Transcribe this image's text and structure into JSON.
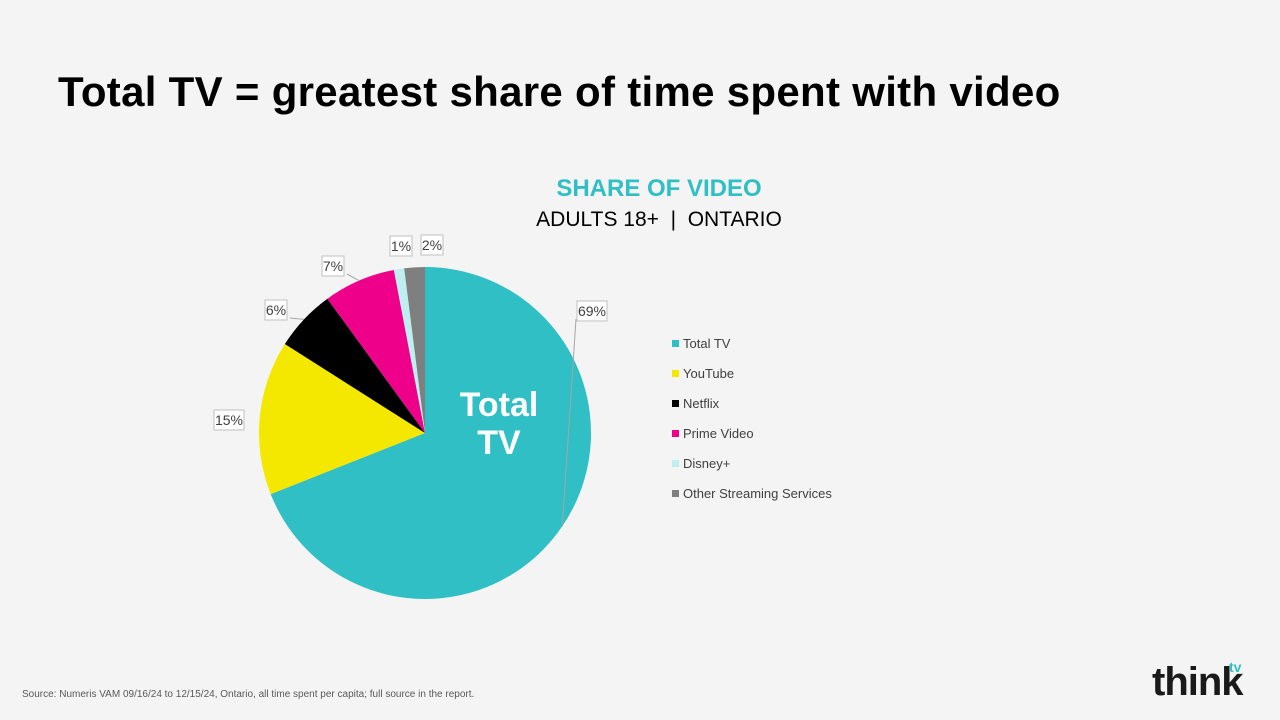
{
  "headline": "Total TV = greatest share of time spent with video",
  "chart_data": {
    "type": "pie",
    "title": "SHARE OF VIDEO",
    "subtitle": "ADULTS 18+  |  ONTARIO",
    "center_label_line1": "Total",
    "center_label_line2": "TV",
    "slices": [
      {
        "name": "Total TV",
        "value": 69,
        "label": "69%",
        "color": "#2fbfc4"
      },
      {
        "name": "YouTube",
        "value": 15,
        "label": "15%",
        "color": "#f5e800"
      },
      {
        "name": "Netflix",
        "value": 6,
        "label": "6%",
        "color": "#000000"
      },
      {
        "name": "Prime Video",
        "value": 7,
        "label": "7%",
        "color": "#ee008b"
      },
      {
        "name": "Disney+",
        "value": 1,
        "label": "1%",
        "color": "#bfeef0"
      },
      {
        "name": "Other Streaming Services",
        "value": 2,
        "label": "2%",
        "color": "#7f7f7f"
      }
    ],
    "legend_position": "right"
  },
  "source": "Source: Numeris VAM 09/16/24 to 12/15/24, Ontario, all time spent per capita; full source in the report.",
  "logo": {
    "main": "think",
    "accent": "tv"
  }
}
